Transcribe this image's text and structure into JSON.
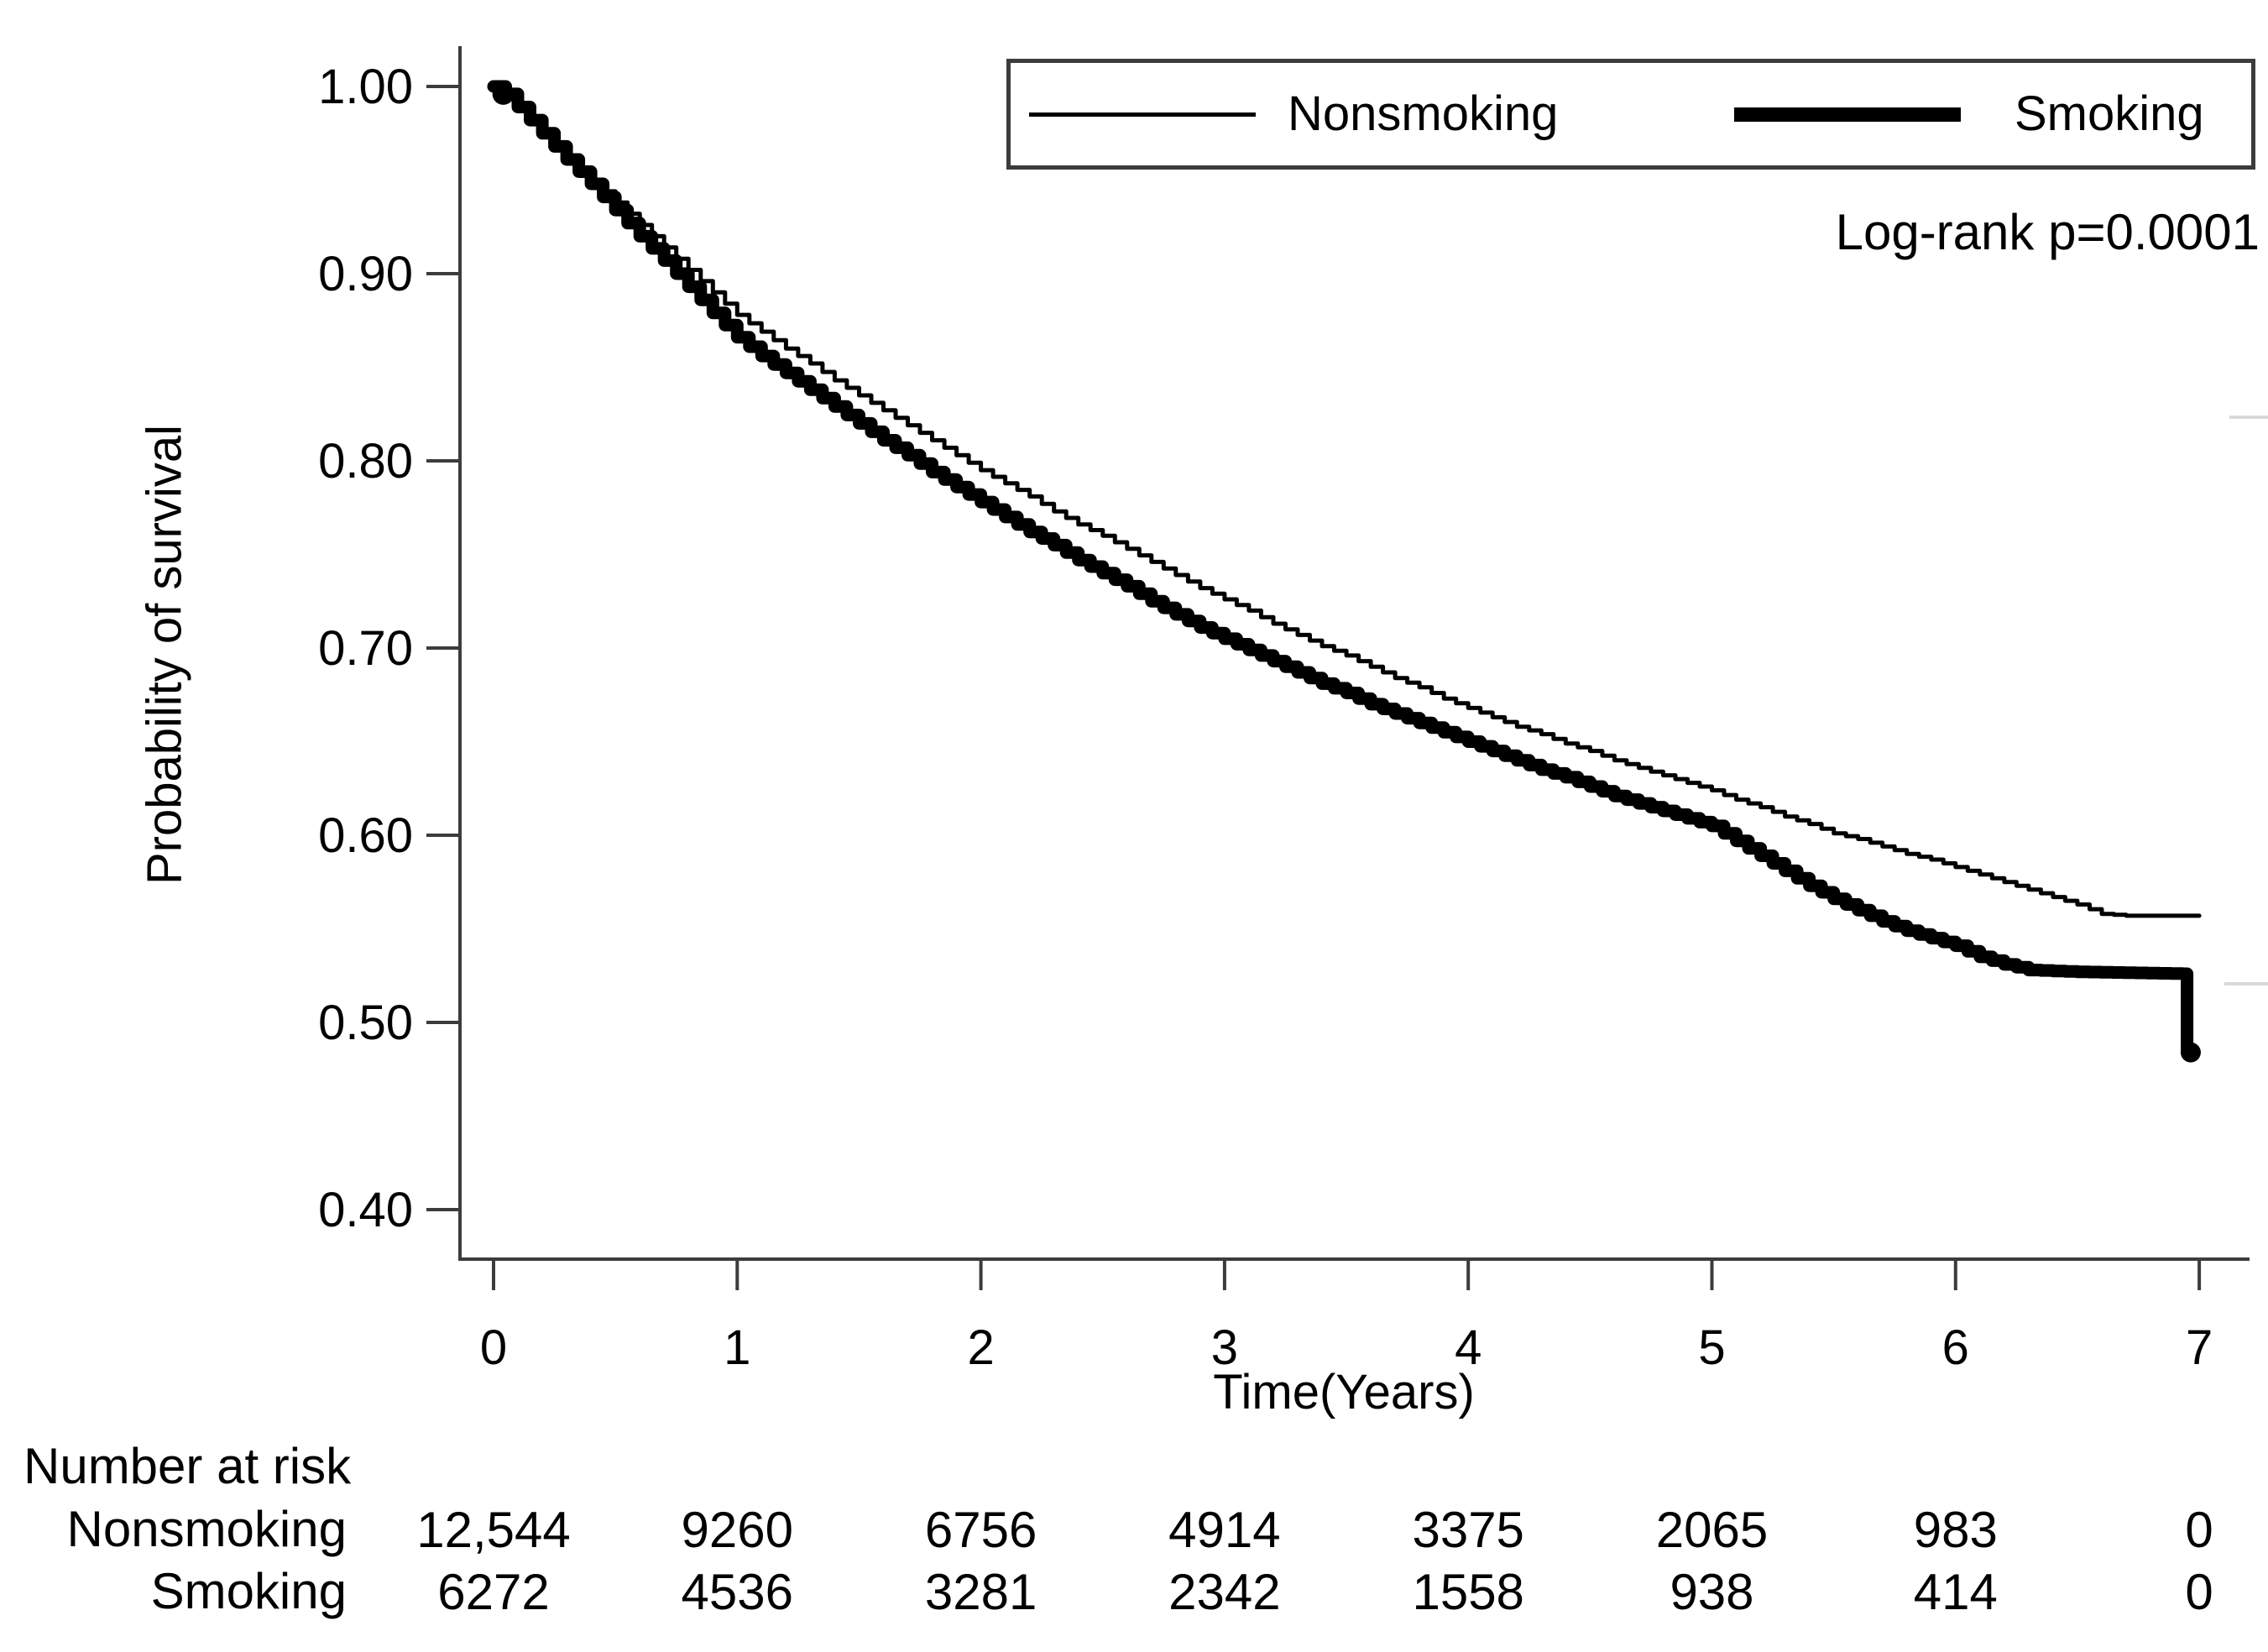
{
  "chart_data": {
    "type": "line",
    "subtype": "kaplan-meier-survival",
    "title": "",
    "xlabel": "Time(Years)",
    "ylabel": "Probability of survival",
    "annotation": "Log-rank p=0.0001",
    "xlim": [
      0,
      7
    ],
    "ylim": [
      0.4,
      1.0
    ],
    "grid": false,
    "colors": {
      "line": "#000000",
      "axis": "#3c3c3c",
      "text": "#000000"
    },
    "xticks": [
      {
        "t": 0,
        "label": "0"
      },
      {
        "t": 1,
        "label": "1"
      },
      {
        "t": 2,
        "label": "2"
      },
      {
        "t": 3,
        "label": "3"
      },
      {
        "t": 4,
        "label": "4"
      },
      {
        "t": 5,
        "label": "5"
      },
      {
        "t": 6,
        "label": "6"
      },
      {
        "t": 7,
        "label": "7"
      }
    ],
    "yticks": [
      {
        "v": 1.0,
        "label": "1.00"
      },
      {
        "v": 0.9,
        "label": "0.90"
      },
      {
        "v": 0.8,
        "label": "0.80"
      },
      {
        "v": 0.7,
        "label": "0.70"
      },
      {
        "v": 0.6,
        "label": "0.60"
      },
      {
        "v": 0.5,
        "label": "0.50"
      },
      {
        "v": 0.4,
        "label": "0.40"
      }
    ],
    "legend": {
      "position": "top-right-inside",
      "items": [
        {
          "label": "Nonsmoking",
          "line": "thin"
        },
        {
          "label": "Smoking",
          "line": "thick"
        }
      ]
    },
    "series": [
      {
        "name": "Nonsmoking",
        "line": "thin",
        "stroke_width": 5,
        "points": [
          [
            0,
            1.0
          ],
          [
            0.05,
            0.997
          ],
          [
            0.1,
            0.99
          ],
          [
            0.2,
            0.977
          ],
          [
            0.3,
            0.963
          ],
          [
            0.4,
            0.95
          ],
          [
            0.5,
            0.938
          ],
          [
            0.6,
            0.926
          ],
          [
            0.7,
            0.914
          ],
          [
            0.8,
            0.902
          ],
          [
            0.9,
            0.89
          ],
          [
            1.0,
            0.878
          ],
          [
            1.1,
            0.869
          ],
          [
            1.2,
            0.86
          ],
          [
            1.3,
            0.852
          ],
          [
            1.4,
            0.843
          ],
          [
            1.5,
            0.835
          ],
          [
            1.6,
            0.827
          ],
          [
            1.7,
            0.819
          ],
          [
            1.8,
            0.811
          ],
          [
            1.9,
            0.803
          ],
          [
            2.0,
            0.795
          ],
          [
            2.1,
            0.788
          ],
          [
            2.2,
            0.781
          ],
          [
            2.3,
            0.773
          ],
          [
            2.4,
            0.766
          ],
          [
            2.5,
            0.76
          ],
          [
            2.6,
            0.753
          ],
          [
            2.7,
            0.746
          ],
          [
            2.8,
            0.739
          ],
          [
            2.9,
            0.732
          ],
          [
            3.0,
            0.726
          ],
          [
            3.1,
            0.72
          ],
          [
            3.2,
            0.713
          ],
          [
            3.3,
            0.707
          ],
          [
            3.4,
            0.701
          ],
          [
            3.5,
            0.696
          ],
          [
            3.6,
            0.69
          ],
          [
            3.7,
            0.684
          ],
          [
            3.8,
            0.679
          ],
          [
            3.9,
            0.673
          ],
          [
            4.0,
            0.668
          ],
          [
            4.1,
            0.663
          ],
          [
            4.2,
            0.658
          ],
          [
            4.3,
            0.654
          ],
          [
            4.4,
            0.649
          ],
          [
            4.5,
            0.645
          ],
          [
            4.6,
            0.64
          ],
          [
            4.7,
            0.636
          ],
          [
            4.8,
            0.632
          ],
          [
            4.9,
            0.628
          ],
          [
            5.0,
            0.624
          ],
          [
            5.1,
            0.619
          ],
          [
            5.2,
            0.615
          ],
          [
            5.3,
            0.61
          ],
          [
            5.4,
            0.606
          ],
          [
            5.5,
            0.601
          ],
          [
            5.6,
            0.598
          ],
          [
            5.7,
            0.594
          ],
          [
            5.8,
            0.59
          ],
          [
            5.9,
            0.587
          ],
          [
            6.0,
            0.583
          ],
          [
            6.1,
            0.579
          ],
          [
            6.2,
            0.575
          ],
          [
            6.3,
            0.571
          ],
          [
            6.4,
            0.567
          ],
          [
            6.5,
            0.563
          ],
          [
            6.6,
            0.558
          ],
          [
            6.7,
            0.557
          ],
          [
            7.0,
            0.557
          ]
        ]
      },
      {
        "name": "Smoking",
        "line": "thick",
        "stroke_width": 15,
        "start_dot": true,
        "end_dot": true,
        "points": [
          [
            0,
            1.0
          ],
          [
            0.05,
            0.996
          ],
          [
            0.1,
            0.989
          ],
          [
            0.2,
            0.975
          ],
          [
            0.3,
            0.961
          ],
          [
            0.4,
            0.948
          ],
          [
            0.5,
            0.934
          ],
          [
            0.6,
            0.92
          ],
          [
            0.7,
            0.907
          ],
          [
            0.8,
            0.893
          ],
          [
            0.9,
            0.879
          ],
          [
            1.0,
            0.866
          ],
          [
            1.1,
            0.856
          ],
          [
            1.2,
            0.847
          ],
          [
            1.3,
            0.838
          ],
          [
            1.4,
            0.829
          ],
          [
            1.5,
            0.82
          ],
          [
            1.6,
            0.811
          ],
          [
            1.7,
            0.803
          ],
          [
            1.8,
            0.794
          ],
          [
            1.9,
            0.786
          ],
          [
            2.0,
            0.778
          ],
          [
            2.1,
            0.77
          ],
          [
            2.2,
            0.762
          ],
          [
            2.3,
            0.755
          ],
          [
            2.4,
            0.747
          ],
          [
            2.5,
            0.74
          ],
          [
            2.6,
            0.733
          ],
          [
            2.7,
            0.725
          ],
          [
            2.8,
            0.718
          ],
          [
            2.9,
            0.711
          ],
          [
            3.0,
            0.705
          ],
          [
            3.1,
            0.699
          ],
          [
            3.2,
            0.693
          ],
          [
            3.3,
            0.687
          ],
          [
            3.4,
            0.681
          ],
          [
            3.5,
            0.676
          ],
          [
            3.6,
            0.67
          ],
          [
            3.7,
            0.665
          ],
          [
            3.8,
            0.66
          ],
          [
            3.9,
            0.655
          ],
          [
            4.0,
            0.65
          ],
          [
            4.1,
            0.645
          ],
          [
            4.2,
            0.64
          ],
          [
            4.3,
            0.635
          ],
          [
            4.4,
            0.631
          ],
          [
            4.5,
            0.626
          ],
          [
            4.6,
            0.621
          ],
          [
            4.7,
            0.617
          ],
          [
            4.8,
            0.613
          ],
          [
            4.9,
            0.609
          ],
          [
            5.0,
            0.605
          ],
          [
            5.1,
            0.597
          ],
          [
            5.2,
            0.589
          ],
          [
            5.3,
            0.581
          ],
          [
            5.4,
            0.573
          ],
          [
            5.5,
            0.566
          ],
          [
            5.6,
            0.56
          ],
          [
            5.7,
            0.554
          ],
          [
            5.8,
            0.549
          ],
          [
            5.9,
            0.545
          ],
          [
            6.0,
            0.541
          ],
          [
            6.1,
            0.535
          ],
          [
            6.2,
            0.531
          ],
          [
            6.3,
            0.528
          ],
          [
            6.5,
            0.527
          ],
          [
            6.93,
            0.526
          ],
          [
            6.95,
            0.484
          ],
          [
            6.98,
            0.484
          ]
        ]
      }
    ]
  },
  "risk_table": {
    "title": "Number at risk",
    "time_points": [
      0,
      1,
      2,
      3,
      4,
      5,
      6,
      7
    ],
    "rows": [
      {
        "label": "Nonsmoking",
        "values": [
          "12,544",
          "9260",
          "6756",
          "4914",
          "3375",
          "2065",
          "983",
          "0"
        ]
      },
      {
        "label": "Smoking",
        "values": [
          "6272",
          "4536",
          "3281",
          "2342",
          "1558",
          "938",
          "414",
          "0"
        ]
      }
    ]
  }
}
